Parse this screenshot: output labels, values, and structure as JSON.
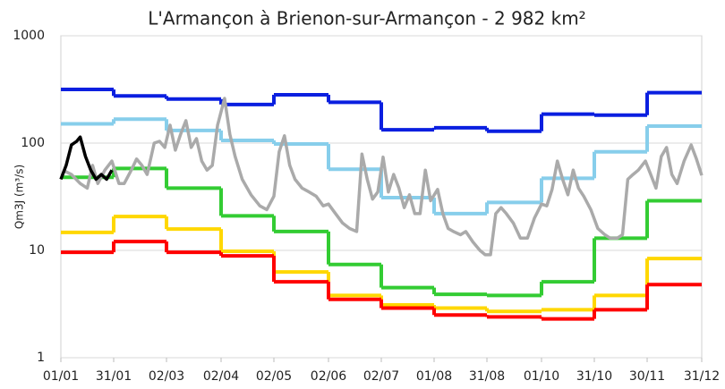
{
  "chart_data": {
    "type": "line",
    "title": "L'Armançon à Brienon-sur-Armançon - 2 982 km²",
    "y_label": "Qm3J (m³/s)",
    "log_y": true,
    "grid": true,
    "ylim": [
      1,
      1000
    ],
    "yticks": [
      1,
      10,
      100,
      1000
    ],
    "xlim": [
      0,
      364
    ],
    "xticks": [
      {
        "value": 0,
        "label": "01/01"
      },
      {
        "value": 30,
        "label": "31/01"
      },
      {
        "value": 60,
        "label": "02/03"
      },
      {
        "value": 91,
        "label": "02/04"
      },
      {
        "value": 121,
        "label": "02/05"
      },
      {
        "value": 152,
        "label": "02/06"
      },
      {
        "value": 182,
        "label": "02/07"
      },
      {
        "value": 212,
        "label": "01/08"
      },
      {
        "value": 242,
        "label": "31/08"
      },
      {
        "value": 273,
        "label": "01/10"
      },
      {
        "value": 303,
        "label": "31/10"
      },
      {
        "value": 333,
        "label": "30/11"
      },
      {
        "value": 364,
        "label": "31/12"
      }
    ],
    "step_series": [
      {
        "color": "#0a1fe0",
        "values": [
          316,
          275,
          257,
          229,
          282,
          240,
          133,
          139,
          129,
          186,
          182,
          295
        ]
      },
      {
        "color": "#87ceeb",
        "values": [
          151,
          167,
          131,
          106,
          98,
          57,
          31,
          22,
          28,
          47,
          83,
          144
        ]
      },
      {
        "color": "#33cc33",
        "values": [
          48,
          58,
          38,
          21,
          15,
          7.4,
          4.5,
          3.9,
          3.8,
          5.1,
          13,
          29
        ]
      },
      {
        "color": "#ffd700",
        "values": [
          14.7,
          20.7,
          15.8,
          9.8,
          6.3,
          3.8,
          3.1,
          2.9,
          2.7,
          2.8,
          3.8,
          8.4
        ]
      },
      {
        "color": "#ff0000",
        "values": [
          9.6,
          12.1,
          9.6,
          8.9,
          5.1,
          3.5,
          2.9,
          2.5,
          2.4,
          2.3,
          2.8,
          4.8
        ]
      }
    ],
    "series": [
      {
        "color": "#aaaaaa",
        "x": [
          1,
          6,
          11,
          15,
          18,
          21,
          25,
          29,
          33,
          36,
          40,
          43,
          46,
          49,
          53,
          56,
          59,
          62,
          65,
          68,
          71,
          74,
          77,
          80,
          83,
          86,
          89,
          93,
          96,
          99,
          103,
          108,
          113,
          117,
          121,
          124,
          127,
          130,
          133,
          137,
          141,
          145,
          149,
          152,
          156,
          160,
          164,
          168,
          171,
          174,
          177,
          180,
          183,
          186,
          189,
          192,
          195,
          198,
          201,
          204,
          207,
          210,
          214,
          217,
          220,
          223,
          227,
          230,
          234,
          238,
          241,
          244,
          247,
          250,
          253,
          257,
          261,
          265,
          269,
          273,
          276,
          279,
          282,
          285,
          288,
          291,
          294,
          297,
          301,
          305,
          309,
          312,
          316,
          319,
          322,
          325,
          328,
          332,
          335,
          338,
          341,
          344,
          347,
          350,
          354,
          358,
          361,
          364
        ],
        "values": [
          56,
          51,
          42,
          38,
          62,
          42,
          56,
          68,
          42,
          42,
          56,
          71,
          62,
          51,
          100,
          104,
          91,
          147,
          86,
          121,
          162,
          91,
          110,
          68,
          56,
          62,
          147,
          261,
          121,
          75,
          46,
          33,
          26,
          24,
          32,
          83,
          117,
          62,
          46,
          38,
          35,
          32,
          26,
          27,
          22,
          18,
          16,
          15,
          79,
          46,
          30,
          35,
          74,
          35,
          51,
          38,
          25,
          33,
          22,
          22,
          56,
          29,
          37,
          22,
          16,
          15,
          14,
          15,
          12,
          10,
          9.1,
          9.1,
          22,
          25,
          22,
          18,
          13,
          13,
          20,
          27,
          26,
          37,
          68,
          46,
          33,
          56,
          38,
          32,
          24,
          16,
          14,
          13,
          13,
          14,
          46,
          51,
          56,
          68,
          51,
          38,
          75,
          91,
          51,
          42,
          68,
          96,
          71,
          50
        ]
      },
      {
        "color": "#000000",
        "x": [
          0,
          3,
          6,
          9,
          11,
          14,
          17,
          20,
          23,
          26,
          29
        ],
        "values": [
          46,
          62,
          96,
          104,
          114,
          75,
          56,
          46,
          51,
          46,
          56
        ]
      }
    ]
  }
}
